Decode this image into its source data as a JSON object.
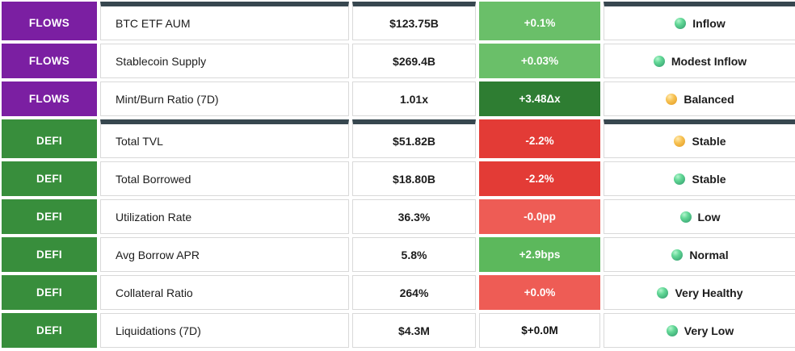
{
  "colors": {
    "section_bar": "#37474f",
    "badge_flows": "#7b1fa2",
    "badge_defi": "#388e3c",
    "green_light": "#6abf69",
    "green_mid": "#5cb85c",
    "green_dark": "#2e7d32",
    "red_strong": "#e33b36",
    "red_light": "#ee5c55",
    "neutral": "#ffffff",
    "dot_green": "#46b57e",
    "dot_yellow": "#f0b32f"
  },
  "table": {
    "rows": [
      {
        "category": "FLOWS",
        "badge": "flows",
        "label": "BTC ETF AUM",
        "value": "$123.75B",
        "change": "+0.1%",
        "change_style": "green_light",
        "status": "Inflow",
        "dot": "green",
        "section_start": true
      },
      {
        "category": "FLOWS",
        "badge": "flows",
        "label": "Stablecoin Supply",
        "value": "$269.4B",
        "change": "+0.03%",
        "change_style": "green_light",
        "status": "Modest Inflow",
        "dot": "green",
        "section_start": false
      },
      {
        "category": "FLOWS",
        "badge": "flows",
        "label": "Mint/Burn Ratio (7D)",
        "value": "1.01x",
        "change": "+3.48Δx",
        "change_style": "green_dark",
        "status": "Balanced",
        "dot": "yellow",
        "section_start": false
      },
      {
        "category": "DEFI",
        "badge": "defi",
        "label": "Total TVL",
        "value": "$51.82B",
        "change": "-2.2%",
        "change_style": "red_strong",
        "status": "Stable",
        "dot": "yellow",
        "section_start": true
      },
      {
        "category": "DEFI",
        "badge": "defi",
        "label": "Total Borrowed",
        "value": "$18.80B",
        "change": "-2.2%",
        "change_style": "red_strong",
        "status": "Stable",
        "dot": "green",
        "section_start": false
      },
      {
        "category": "DEFI",
        "badge": "defi",
        "label": "Utilization Rate",
        "value": "36.3%",
        "change": "-0.0pp",
        "change_style": "red_light",
        "status": "Low",
        "dot": "green",
        "section_start": false
      },
      {
        "category": "DEFI",
        "badge": "defi",
        "label": "Avg Borrow APR",
        "value": "5.8%",
        "change": "+2.9bps",
        "change_style": "green_mid",
        "status": "Normal",
        "dot": "green",
        "section_start": false
      },
      {
        "category": "DEFI",
        "badge": "defi",
        "label": "Collateral Ratio",
        "value": "264%",
        "change": "+0.0%",
        "change_style": "red_light",
        "status": "Very Healthy",
        "dot": "green",
        "section_start": false
      },
      {
        "category": "DEFI",
        "badge": "defi",
        "label": "Liquidations (7D)",
        "value": "$4.3M",
        "change": "$+0.0M",
        "change_style": "neutral",
        "status": "Very Low",
        "dot": "green",
        "section_start": false
      }
    ]
  }
}
